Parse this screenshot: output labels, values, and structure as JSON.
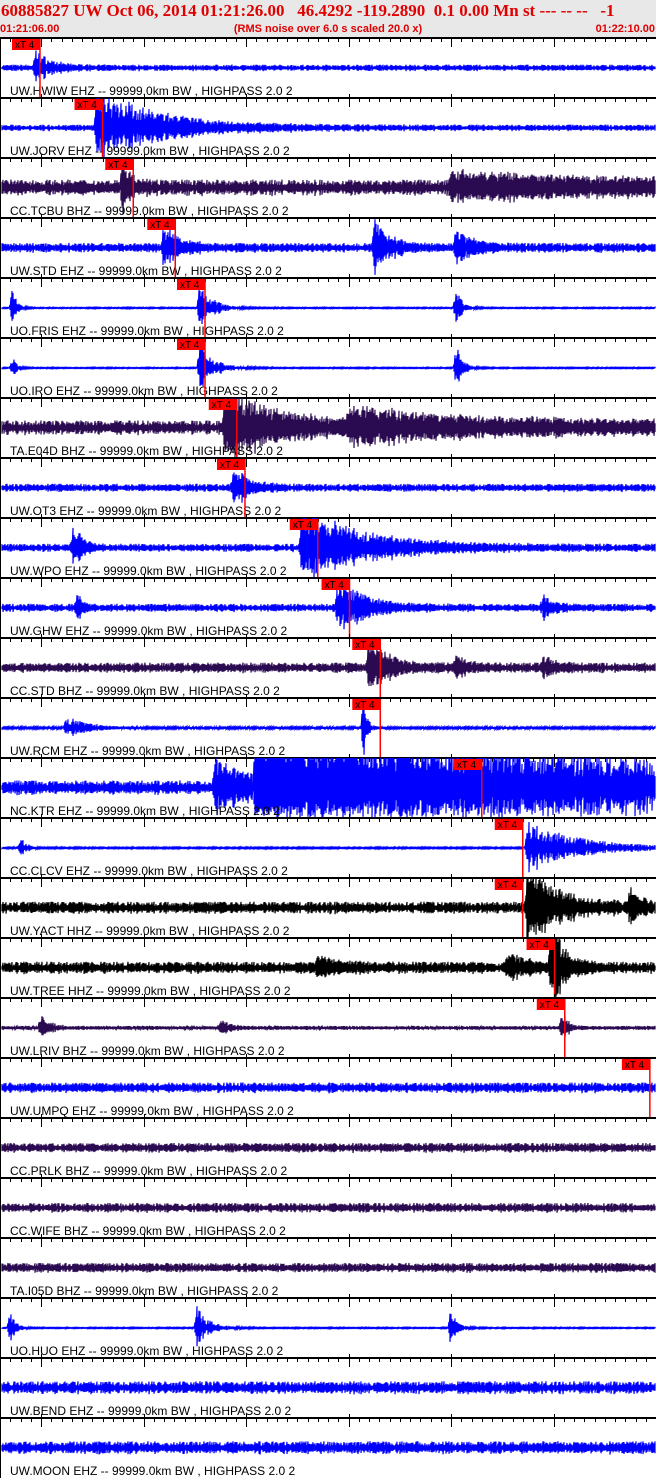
{
  "header": {
    "title": "60885827 UW Oct 06, 2014 01:21:26.00   46.4292 -119.2890  0.1 0.00 Mn st --- -- --   -1",
    "start_time": "01:21:06.00",
    "end_time": "01:22:10.00",
    "rms_note": "(RMS noise over 6.0 s scaled 20.0 x)"
  },
  "chart_data": {
    "type": "line",
    "xlim": [
      "01:21:06.00",
      "01:22:10.00"
    ],
    "minute_label": "01:22",
    "pick_label": "xT 4",
    "colors": {
      "pick": "#ff0000",
      "blue": "#0000ff",
      "purple": "#2a0a50",
      "black": "#000000"
    },
    "traces": [
      {
        "label": "UW.HWIW EHZ -- 99999.0km BW , HIGHPASS  2.0  2",
        "color": "blue",
        "noise": 0.08,
        "pick": "01:21:09.9",
        "bursts": [
          {
            "t": "01:21:09.5",
            "amp": 0.4,
            "decay_s": 1.5
          }
        ]
      },
      {
        "label": "UW.JORV EHZ -- 99999.0km BW , HIGHPASS  2.0  2",
        "color": "blue",
        "noise": 0.08,
        "pick": "01:21:16.0",
        "bursts": [
          {
            "t": "01:21:15.5",
            "amp": 1.0,
            "decay_s": 6
          }
        ]
      },
      {
        "label": "CC.TCBU BHZ -- 99999.0km BW , HIGHPASS  2.0  2",
        "color": "purple",
        "noise": 0.2,
        "pick": "01:21:19.0",
        "bursts": [
          {
            "t": "01:21:18.0",
            "amp": 0.7,
            "decay_s": 0.8
          },
          {
            "t": "01:21:50.0",
            "amp": 0.3,
            "decay_s": 20
          }
        ]
      },
      {
        "label": "UW.STD EHZ -- 99999.0km BW , HIGHPASS  2.0  2",
        "color": "blue",
        "noise": 0.12,
        "pick": "01:21:23.1",
        "bursts": [
          {
            "t": "01:21:22.0",
            "amp": 0.6,
            "decay_s": 1.5
          },
          {
            "t": "01:21:42.5",
            "amp": 0.7,
            "decay_s": 1.5
          },
          {
            "t": "01:21:50.5",
            "amp": 0.45,
            "decay_s": 1.5
          }
        ]
      },
      {
        "label": "UO.FRIS EHZ -- 99999.0km BW , HIGHPASS  2.0  2",
        "color": "blue",
        "noise": 0.015,
        "pick": "01:21:26.0",
        "bursts": [
          {
            "t": "01:21:07.2",
            "amp": 0.55,
            "decay_s": 0.4
          },
          {
            "t": "01:21:25.5",
            "amp": 0.65,
            "decay_s": 1.2
          },
          {
            "t": "01:21:50.5",
            "amp": 0.5,
            "decay_s": 0.6
          }
        ]
      },
      {
        "label": "UO.IRO EHZ -- 99999.0km BW , HIGHPASS  2.0  2",
        "color": "blue",
        "noise": 0.015,
        "pick": "01:21:26.0",
        "bursts": [
          {
            "t": "01:21:07.2",
            "amp": 0.35,
            "decay_s": 0.4
          },
          {
            "t": "01:21:25.5",
            "amp": 0.85,
            "decay_s": 1.2
          },
          {
            "t": "01:21:50.5",
            "amp": 0.8,
            "decay_s": 0.6
          }
        ]
      },
      {
        "label": "TA.E04D BHZ -- 99999.0km BW , HIGHPASS  2.0  2",
        "color": "purple",
        "noise": 0.18,
        "pick": "01:21:29.1",
        "bursts": [
          {
            "t": "01:21:28.0",
            "amp": 1.0,
            "decay_s": 5
          },
          {
            "t": "01:21:40.0",
            "amp": 0.4,
            "decay_s": 15
          }
        ]
      },
      {
        "label": "UW.OT3 EHZ -- 99999.0km BW , HIGHPASS  2.0  2",
        "color": "blue",
        "noise": 0.1,
        "pick": "01:21:29.9",
        "bursts": [
          {
            "t": "01:21:28.8",
            "amp": 0.5,
            "decay_s": 1.5
          }
        ]
      },
      {
        "label": "UW.WPO EHZ -- 99999.0km BW , HIGHPASS  2.0  2",
        "color": "blue",
        "noise": 0.1,
        "pick": "01:21:37.0",
        "bursts": [
          {
            "t": "01:21:13.2",
            "amp": 0.65,
            "decay_s": 0.8
          },
          {
            "t": "01:21:35.5",
            "amp": 1.0,
            "decay_s": 6
          }
        ]
      },
      {
        "label": "UW.GHW EHZ -- 99999.0km BW , HIGHPASS  2.0  2",
        "color": "blue",
        "noise": 0.1,
        "pick": "01:21:40.1",
        "bursts": [
          {
            "t": "01:21:13.5",
            "amp": 0.4,
            "decay_s": 0.6
          },
          {
            "t": "01:21:39.0",
            "amp": 0.8,
            "decay_s": 2.5
          },
          {
            "t": "01:21:59.0",
            "amp": 0.3,
            "decay_s": 1
          }
        ]
      },
      {
        "label": "CC.STD BHZ -- 99999.0km BW , HIGHPASS  2.0  2",
        "color": "purple",
        "noise": 0.13,
        "pick": "01:21:43.1",
        "bursts": [
          {
            "t": "01:21:42.0",
            "amp": 0.7,
            "decay_s": 2
          },
          {
            "t": "01:21:50.5",
            "amp": 0.3,
            "decay_s": 1
          },
          {
            "t": "01:21:59.0",
            "amp": 0.3,
            "decay_s": 1
          }
        ]
      },
      {
        "label": "UW.RCM EHZ -- 99999.0km BW , HIGHPASS  2.0  2",
        "color": "blue",
        "noise": 0.03,
        "pick": "01:21:43.1",
        "bursts": [
          {
            "t": "01:21:12.5",
            "amp": 0.3,
            "decay_s": 2
          },
          {
            "t": "01:21:41.5",
            "amp": 1.0,
            "decay_s": 0.3
          }
        ]
      },
      {
        "label": "NC.KTR EHZ -- 99999.0km BW , HIGHPASS  2.0  2",
        "color": "blue",
        "noise": 0.18,
        "pick": "01:21:53.0",
        "bursts": [
          {
            "t": "01:21:27.0",
            "amp": 0.8,
            "decay_s": 3
          },
          {
            "t": "01:21:31.0",
            "amp": 1.6,
            "decay_s": 40
          }
        ]
      },
      {
        "label": "CC.CLCV EHZ -- 99999.0km BW , HIGHPASS  2.0  2",
        "color": "blue",
        "noise": 0.02,
        "pick": "01:21:57.0",
        "bursts": [
          {
            "t": "01:21:08.0",
            "amp": 0.35,
            "decay_s": 0.5
          },
          {
            "t": "01:21:57.5",
            "amp": 0.7,
            "decay_s": 5
          }
        ]
      },
      {
        "label": "UW.YACT HHZ -- 99999.0km BW , HIGHPASS  2.0  2",
        "color": "black",
        "noise": 0.15,
        "pick": "01:21:57.0",
        "bursts": [
          {
            "t": "01:21:57.5",
            "amp": 1.1,
            "decay_s": 3
          },
          {
            "t": "01:22:07.5",
            "amp": 0.5,
            "decay_s": 1
          }
        ]
      },
      {
        "label": "UW.TREE HHZ -- 99999.0km BW , HIGHPASS  2.0  2",
        "color": "black",
        "noise": 0.15,
        "pick": "01:22:00.1",
        "bursts": [
          {
            "t": "01:21:37.0",
            "amp": 0.3,
            "decay_s": 2
          },
          {
            "t": "01:21:55.5",
            "amp": 0.4,
            "decay_s": 2
          },
          {
            "t": "01:21:59.8",
            "amp": 1.3,
            "decay_s": 1.2
          }
        ]
      },
      {
        "label": "UW.LRIV BHZ -- 99999.0km BW , HIGHPASS  2.0  2",
        "color": "purple",
        "noise": 0.05,
        "pick": "01:22:01.1",
        "bursts": [
          {
            "t": "01:21:10.0",
            "amp": 0.3,
            "decay_s": 1
          },
          {
            "t": "01:21:27.5",
            "amp": 0.2,
            "decay_s": 1
          },
          {
            "t": "01:22:00.8",
            "amp": 0.45,
            "decay_s": 0.6
          }
        ]
      },
      {
        "label": "UW.UMPQ EHZ -- 99999.0km BW , HIGHPASS  2.0  2",
        "color": "blue",
        "noise": 0.13,
        "pick": "01:22:09.4",
        "bursts": []
      },
      {
        "label": "CC.PRLK BHZ -- 99999.0km BW , HIGHPASS  2.0  2",
        "color": "purple",
        "noise": 0.12,
        "bursts": []
      },
      {
        "label": "CC.WIFE BHZ -- 99999.0km BW , HIGHPASS  2.0  2",
        "color": "purple",
        "noise": 0.12,
        "bursts": []
      },
      {
        "label": "TA.I05D BHZ -- 99999.0km BW , HIGHPASS  2.0  2",
        "color": "purple",
        "noise": 0.12,
        "bursts": []
      },
      {
        "label": "UO.HUO EHZ -- 99999.0km BW , HIGHPASS  2.0  2",
        "color": "blue",
        "noise": 0.015,
        "bursts": [
          {
            "t": "01:21:07.0",
            "amp": 0.55,
            "decay_s": 0.5
          },
          {
            "t": "01:21:25.2",
            "amp": 0.55,
            "decay_s": 1.2
          },
          {
            "t": "01:21:50.0",
            "amp": 0.55,
            "decay_s": 0.6
          }
        ]
      },
      {
        "label": "UW.BEND EHZ -- 99999.0km BW , HIGHPASS  2.0  2",
        "color": "blue",
        "noise": 0.16,
        "bursts": []
      },
      {
        "label": "UW.MOON EHZ -- 99999.0km BW , HIGHPASS  2.0  2",
        "color": "blue",
        "noise": 0.16,
        "bursts": []
      }
    ]
  }
}
